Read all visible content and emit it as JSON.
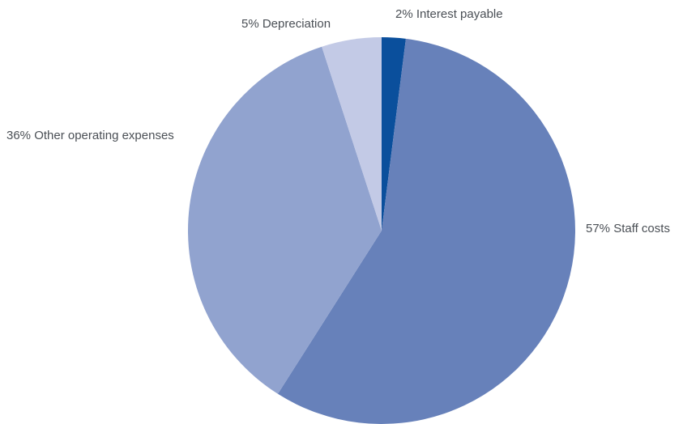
{
  "chart_data": {
    "type": "pie",
    "title": "",
    "start_angle_deg": 0,
    "direction": "clockwise",
    "slices": [
      {
        "name": "Interest payable",
        "value": 2,
        "label": "2% Interest payable",
        "color": "#0a4f9c"
      },
      {
        "name": "Staff costs",
        "value": 57,
        "label": "57% Staff costs",
        "color": "#6781ba"
      },
      {
        "name": "Other operating expenses",
        "value": 36,
        "label": "36% Other operating expenses",
        "color": "#91a3cf"
      },
      {
        "name": "Depreciation",
        "value": 5,
        "label": "5% Depreciation",
        "color": "#c3cae6"
      }
    ]
  }
}
